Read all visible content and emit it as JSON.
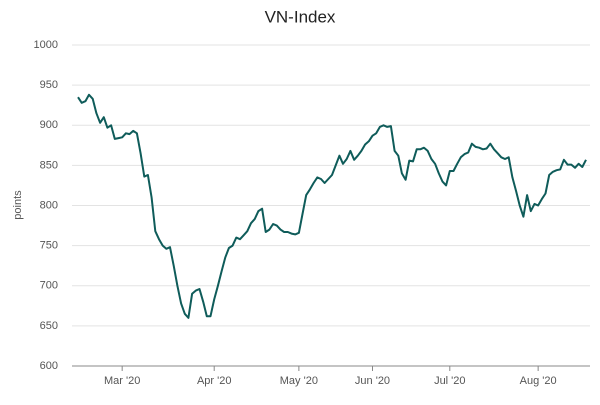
{
  "chart_data": {
    "type": "line",
    "title": "VN-Index",
    "y_label": "points",
    "categories": [
      null,
      null,
      null,
      null,
      null,
      null,
      null,
      null,
      null,
      null,
      null,
      null,
      "Mar '20",
      null,
      null,
      null,
      null,
      null,
      null,
      null,
      null,
      null,
      null,
      null,
      null,
      null,
      null,
      null,
      null,
      null,
      null,
      null,
      null,
      null,
      null,
      null,
      null,
      "Apr '20",
      null,
      null,
      null,
      null,
      null,
      null,
      null,
      null,
      null,
      null,
      null,
      null,
      null,
      null,
      null,
      null,
      null,
      null,
      null,
      null,
      null,
      null,
      "May '20",
      null,
      null,
      null,
      null,
      null,
      null,
      null,
      null,
      null,
      null,
      null,
      null,
      null,
      null,
      null,
      null,
      null,
      null,
      null,
      "Jun '20",
      null,
      null,
      null,
      null,
      null,
      null,
      null,
      null,
      null,
      null,
      null,
      null,
      null,
      null,
      null,
      null,
      null,
      null,
      null,
      null,
      "Jul '20",
      null,
      null,
      null,
      null,
      null,
      null,
      null,
      null,
      null,
      null,
      null,
      null,
      null,
      null,
      null,
      null,
      null,
      null,
      null,
      null,
      null,
      null,
      null,
      "Aug '20",
      null,
      null,
      null,
      null,
      null,
      null,
      null,
      null,
      null,
      null,
      null,
      null,
      null
    ],
    "values": [
      935,
      928,
      930,
      938,
      933,
      915,
      903,
      910,
      897,
      900,
      883,
      884,
      885,
      890,
      889,
      893,
      890,
      865,
      836,
      838,
      810,
      768,
      758,
      750,
      746,
      748,
      725,
      700,
      678,
      665,
      660,
      690,
      694,
      696,
      680,
      662,
      662,
      683,
      700,
      718,
      735,
      747,
      750,
      760,
      758,
      763,
      768,
      778,
      783,
      793,
      796,
      767,
      770,
      777,
      775,
      770,
      767,
      767,
      765,
      764,
      766,
      790,
      813,
      820,
      828,
      835,
      833,
      828,
      833,
      838,
      850,
      862,
      852,
      858,
      868,
      857,
      862,
      868,
      876,
      880,
      887,
      890,
      898,
      900,
      898,
      899,
      868,
      862,
      840,
      832,
      856,
      855,
      870,
      870,
      872,
      868,
      858,
      852,
      840,
      830,
      825,
      843,
      843,
      852,
      860,
      864,
      866,
      877,
      873,
      872,
      870,
      871,
      877,
      870,
      865,
      860,
      858,
      860,
      835,
      818,
      800,
      786,
      813,
      793,
      802,
      800,
      808,
      815,
      838,
      842,
      844,
      845,
      857,
      851,
      851,
      847,
      852,
      848,
      857
    ],
    "color": "#0f5c5a",
    "ylim": [
      600,
      1000
    ],
    "yticks": [
      600,
      650,
      700,
      750,
      800,
      850,
      900,
      950,
      1000
    ],
    "grid": true
  }
}
